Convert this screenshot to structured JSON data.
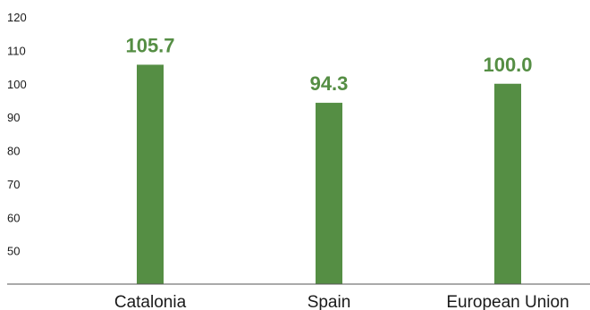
{
  "chart_data": {
    "type": "bar",
    "categories": [
      "Catalonia",
      "Spain",
      "European Union"
    ],
    "values": [
      105.7,
      94.3,
      100.0
    ],
    "data_labels": [
      "105.7",
      "94.3",
      "100.0"
    ],
    "title": "",
    "xlabel": "",
    "ylabel": "",
    "ylim": [
      40,
      120
    ],
    "yticks": [
      50,
      60,
      70,
      80,
      90,
      100,
      110,
      120
    ],
    "ytick_labels": [
      "50",
      "60",
      "70",
      "80",
      "90",
      "100",
      "110",
      "120"
    ],
    "grid": false,
    "legend": "none",
    "colors": {
      "bar": "#558e44",
      "data_label": "#558e44",
      "axis": "#555555",
      "text": "#1a1a1a"
    }
  }
}
